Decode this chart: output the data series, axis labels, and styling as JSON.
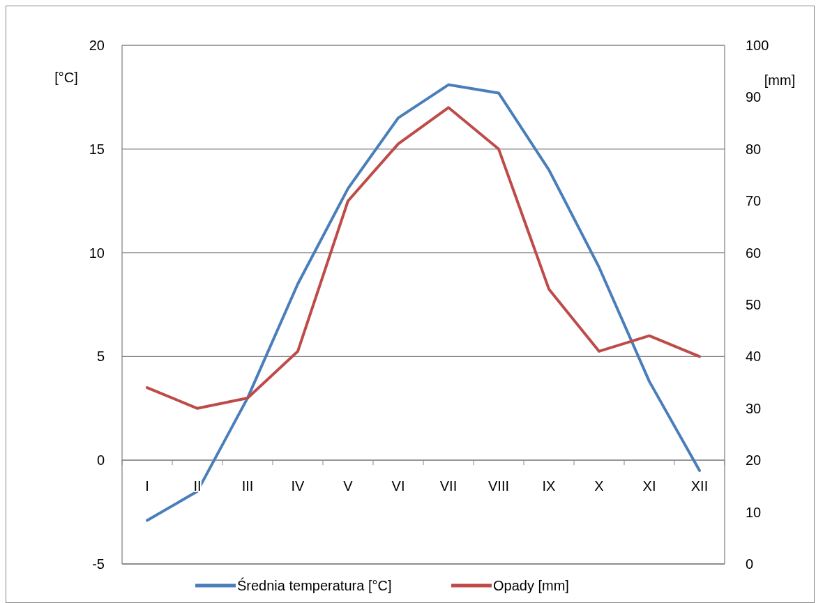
{
  "chart_data": {
    "type": "line",
    "categories": [
      "I",
      "II",
      "III",
      "IV",
      "V",
      "VI",
      "VII",
      "VIII",
      "IX",
      "X",
      "XI",
      "XII"
    ],
    "ylabel": "[°C]",
    "y2label": "[mm]",
    "ylim": [
      -5,
      20
    ],
    "yticks": [
      -5,
      0,
      5,
      10,
      15,
      20
    ],
    "y2lim": [
      0,
      100
    ],
    "y2ticks": [
      0,
      10,
      20,
      30,
      40,
      50,
      60,
      70,
      80,
      90,
      100
    ],
    "grid": "y",
    "legend": "bottom",
    "marker": "none",
    "line_style": "solid",
    "series": [
      {
        "name": "Średnia temperatura [°C]",
        "color": "#4a7ebb",
        "values": [
          -2.9,
          -1.5,
          3.0,
          8.5,
          13.1,
          16.5,
          18.1,
          17.7,
          14.0,
          9.3,
          3.8,
          -0.5
        ]
      },
      {
        "name": "Opady [mm]",
        "color": "#be4b48",
        "axis": "y2",
        "values": [
          34,
          30,
          32,
          41,
          70,
          81,
          88,
          80,
          53,
          41,
          44,
          40
        ]
      }
    ]
  }
}
